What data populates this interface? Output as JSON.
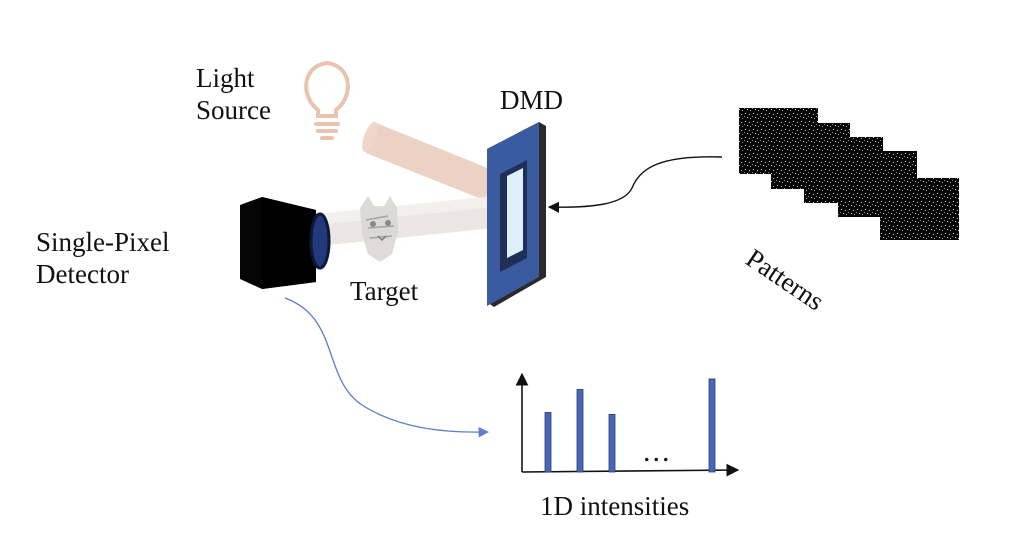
{
  "labels": {
    "light_source_line1": "Light",
    "light_source_line2": "Source",
    "dmd": "DMD",
    "detector_line1": "Single-Pixel",
    "detector_line2": "Detector",
    "target": "Target",
    "patterns": "Patterns",
    "intensities": "1D intensities",
    "ellipsis": "..."
  },
  "icons": {
    "light_source": "lightbulb-icon",
    "target": "cat-image-icon"
  },
  "colors": {
    "beam": "#e6c3b2",
    "dmd_frame": "#3b5ba0",
    "dmd_mirror": "#dff0fa",
    "bulb": "#e8c4ae",
    "detector": "#080808",
    "lens": "#233a7a",
    "bars": "#4a66b5",
    "curve_arrow": "#5a7fc8"
  },
  "chart_data": {
    "type": "bar",
    "categories": [
      "",
      "",
      "",
      "",
      ""
    ],
    "values": [
      0.62,
      0.86,
      0.6,
      null,
      0.97
    ],
    "xlabel": "1D intensities",
    "ylabel": ""
  }
}
